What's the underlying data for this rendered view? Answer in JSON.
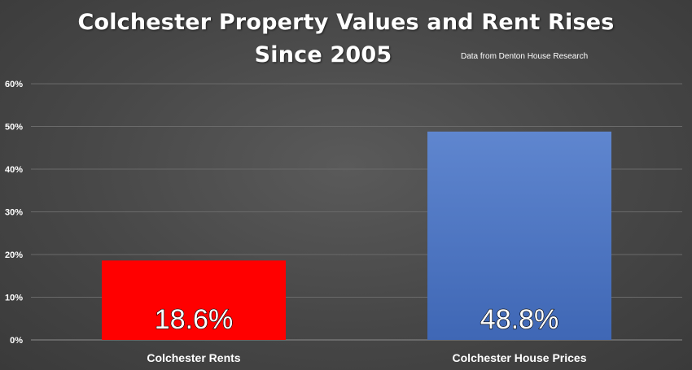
{
  "chart_data": {
    "type": "bar",
    "title_lines": [
      "Colchester Property Values and Rent Rises",
      "Since 2005"
    ],
    "subtitle": "Data from Denton House Research",
    "categories": [
      "Colchester Rents",
      "Colchester House Prices"
    ],
    "values": [
      18.6,
      48.8
    ],
    "value_labels": [
      "18.6%",
      "48.8%"
    ],
    "bar_colors": [
      "#ff0000",
      "#4472c4"
    ],
    "ylim": [
      0,
      60
    ],
    "yticks": [
      0,
      10,
      20,
      30,
      40,
      50,
      60
    ],
    "ytick_labels": [
      "0%",
      "10%",
      "20%",
      "30%",
      "40%",
      "50%",
      "60%"
    ],
    "grid": true,
    "legend": "none",
    "xlabel": "",
    "ylabel": ""
  }
}
